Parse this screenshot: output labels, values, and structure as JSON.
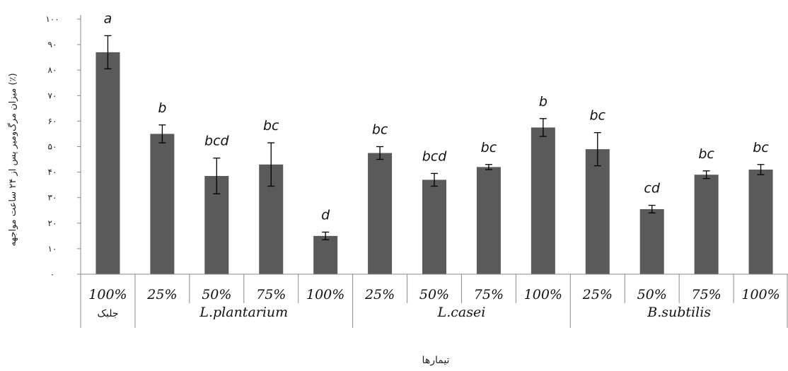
{
  "chart_data": {
    "type": "bar",
    "title": "",
    "xlabel": "تیمارها",
    "ylabel": "میزان مرگ‌ومیر پس از ۲۴ ساعت مواجهه (٪)",
    "ylim": [
      0,
      100
    ],
    "yticks": [
      "٠",
      "١٠",
      "٢٠",
      "٣٠",
      "۴٠",
      "۵٠",
      "۶٠",
      "٧٠",
      "٨٠",
      "٩٠",
      "١٠٠"
    ],
    "groups": [
      {
        "name": "جلبک",
        "categories": [
          "100%"
        ]
      },
      {
        "name": "L.plantarium",
        "categories": [
          "25%",
          "50%",
          "75%",
          "100%"
        ]
      },
      {
        "name": "L.casei",
        "categories": [
          "25%",
          "50%",
          "75%",
          "100%"
        ]
      },
      {
        "name": "B.subtilis",
        "categories": [
          "25%",
          "50%",
          "75%",
          "100%"
        ]
      }
    ],
    "values": [
      87,
      55,
      38.5,
      43,
      15,
      47.5,
      37,
      42,
      57.5,
      49,
      25.5,
      39,
      41
    ],
    "errors": [
      6.5,
      3.5,
      7,
      8.5,
      1.5,
      2.5,
      2.5,
      1,
      3.5,
      6.5,
      1.5,
      1.5,
      2
    ],
    "significance": [
      "a",
      "b",
      "bcd",
      "bc",
      "d",
      "bc",
      "bcd",
      "bc",
      "b",
      "bc",
      "cd",
      "bc",
      "bc"
    ],
    "bar_color": "#5a5a5a",
    "grid": false,
    "legend": "none"
  }
}
